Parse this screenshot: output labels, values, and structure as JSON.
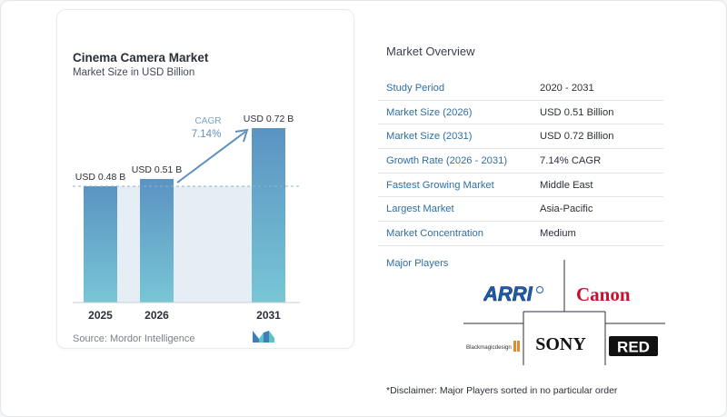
{
  "chart_data": {
    "type": "bar",
    "title": "Cinema Camera Market",
    "subtitle": "Market Size in USD Billion",
    "categories": [
      "2025",
      "2026",
      "2031"
    ],
    "values": [
      0.48,
      0.51,
      0.72
    ],
    "value_labels": [
      "USD 0.48 B",
      "USD 0.51 B",
      "USD 0.72 B"
    ],
    "cagr_label": "CAGR",
    "cagr_value": "7.14%",
    "ylim": [
      0,
      0.72
    ],
    "grid": false,
    "reference_line_value": 0.48,
    "colors": {
      "bar_top": "#5b93c2",
      "bar_bottom": "#78c6d6",
      "shade": "#e6eef5",
      "accent": "#5f8fbe"
    }
  },
  "source": "Source: Mordor Intelligence",
  "overview": {
    "title": "Market Overview",
    "rows": [
      {
        "label": "Study Period",
        "value": "2020 - 2031"
      },
      {
        "label": "Market Size (2026)",
        "value": "USD 0.51 Billion"
      },
      {
        "label": "Market Size (2031)",
        "value": "USD 0.72 Billion"
      },
      {
        "label": "Growth Rate (2026 - 2031)",
        "value": "7.14% CAGR"
      },
      {
        "label": "Fastest Growing Market",
        "value": "Middle East"
      },
      {
        "label": "Largest Market",
        "value": "Asia-Pacific"
      },
      {
        "label": "Market Concentration",
        "value": "Medium"
      }
    ]
  },
  "players": {
    "title": "Major Players",
    "logos": [
      "ARRI",
      "Canon",
      "Blackmagicdesign",
      "SONY",
      "RED"
    ]
  },
  "disclaimer": "*Disclaimer: Major Players sorted in no particular order"
}
